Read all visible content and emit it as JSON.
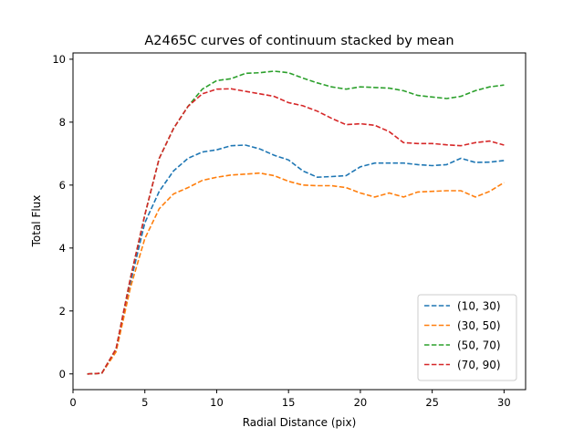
{
  "chart_data": {
    "type": "line",
    "title": "A2465C curves of continuum stacked by mean",
    "xlabel": "Radial Distance (pix)",
    "ylabel": "Total Flux",
    "xlim": [
      0,
      31.5
    ],
    "ylim": [
      -0.5,
      10.2
    ],
    "x_ticks": [
      0,
      5,
      10,
      15,
      20,
      25,
      30
    ],
    "y_ticks": [
      0,
      2,
      4,
      6,
      8,
      10
    ],
    "grid": false,
    "legend_position": "lower-right",
    "line_style": "dashed",
    "x": [
      1,
      2,
      3,
      4,
      5,
      6,
      7,
      8,
      9,
      10,
      11,
      12,
      13,
      14,
      15,
      16,
      17,
      18,
      19,
      20,
      21,
      22,
      23,
      24,
      25,
      26,
      27,
      28,
      29,
      30
    ],
    "series": [
      {
        "name": "(10, 30)",
        "color": "#1f77b4",
        "values": [
          0.0,
          0.02,
          0.75,
          2.9,
          4.8,
          5.8,
          6.45,
          6.85,
          7.05,
          7.12,
          7.25,
          7.27,
          7.15,
          6.95,
          6.8,
          6.45,
          6.25,
          6.27,
          6.3,
          6.58,
          6.7,
          6.7,
          6.7,
          6.65,
          6.62,
          6.65,
          6.85,
          6.72,
          6.73,
          6.78
        ]
      },
      {
        "name": "(30, 50)",
        "color": "#ff7f0e",
        "values": [
          0.0,
          0.02,
          0.7,
          2.75,
          4.3,
          5.25,
          5.72,
          5.92,
          6.15,
          6.25,
          6.32,
          6.35,
          6.38,
          6.3,
          6.12,
          6.0,
          5.98,
          5.98,
          5.92,
          5.75,
          5.62,
          5.75,
          5.62,
          5.78,
          5.8,
          5.82,
          5.82,
          5.62,
          5.8,
          6.08
        ]
      },
      {
        "name": "(50, 70)",
        "color": "#2ca02c",
        "values": [
          0.0,
          0.02,
          0.8,
          3.05,
          5.05,
          6.85,
          7.8,
          8.5,
          9.05,
          9.32,
          9.38,
          9.55,
          9.57,
          9.62,
          9.57,
          9.4,
          9.25,
          9.12,
          9.05,
          9.12,
          9.1,
          9.08,
          9.0,
          8.85,
          8.8,
          8.75,
          8.82,
          9.0,
          9.12,
          9.18
        ]
      },
      {
        "name": "(70, 90)",
        "color": "#d62728",
        "values": [
          0.0,
          0.02,
          0.8,
          3.05,
          5.05,
          6.85,
          7.8,
          8.5,
          8.9,
          9.05,
          9.06,
          8.98,
          8.9,
          8.82,
          8.62,
          8.52,
          8.35,
          8.12,
          7.92,
          7.95,
          7.9,
          7.7,
          7.35,
          7.32,
          7.32,
          7.28,
          7.25,
          7.35,
          7.4,
          7.27
        ]
      }
    ]
  }
}
